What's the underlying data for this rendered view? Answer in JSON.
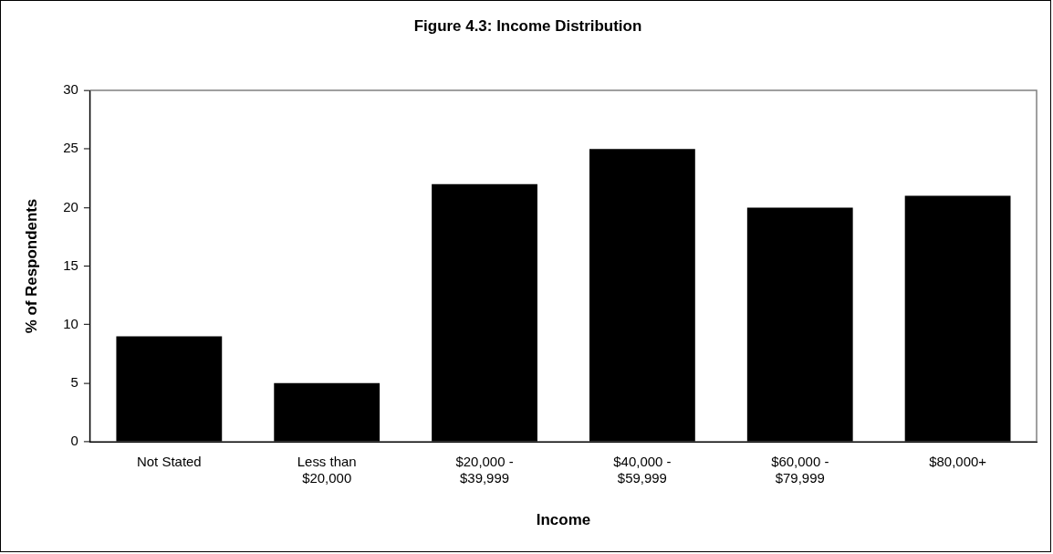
{
  "chart_data": {
    "type": "bar",
    "title": "Figure 4.3: Income Distribution",
    "xlabel": "Income",
    "ylabel": "% of Respondents",
    "categories": [
      "Not Stated",
      "Less than $20,000",
      "$20,000 - $39,999",
      "$40,000 - $59,999",
      "$60,000 - $79,999",
      "$80,000+"
    ],
    "values": [
      9,
      5,
      22,
      25,
      20,
      21
    ],
    "color": "#000000",
    "ylim": [
      0,
      30
    ],
    "yticks": [
      0,
      5,
      10,
      15,
      20,
      25,
      30
    ],
    "grid": false,
    "legend": false
  }
}
